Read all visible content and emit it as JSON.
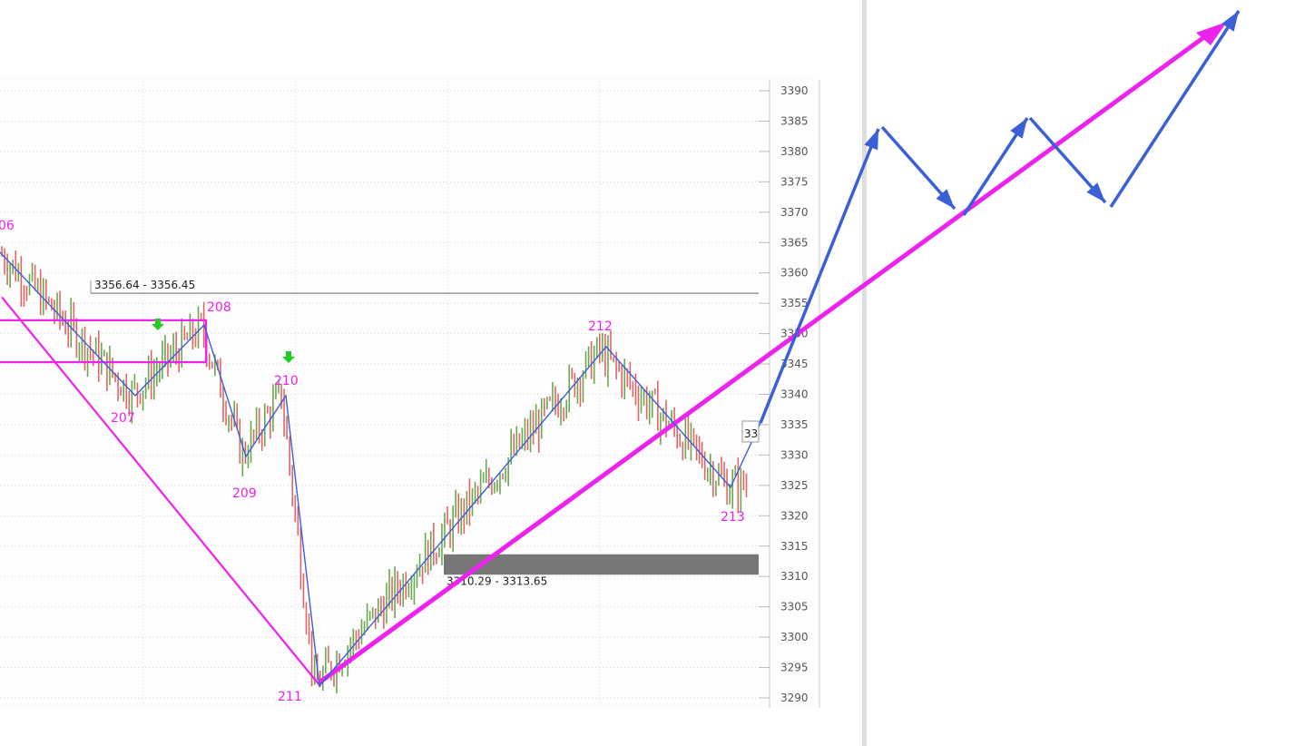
{
  "chart_data": {
    "type": "candlestick",
    "y_axis": {
      "ylim": [
        3288,
        3392
      ],
      "ticks": [
        3390,
        3385,
        3380,
        3375,
        3370,
        3365,
        3360,
        3355,
        3350,
        3345,
        3340,
        3335,
        3330,
        3325,
        3320,
        3315,
        3310,
        3305,
        3300,
        3295,
        3290
      ],
      "tick_labels": [
        "3390",
        "3385",
        "3380",
        "3375",
        "3370",
        "3365",
        "3360",
        "3355",
        "3350",
        "3345",
        "3340",
        "3335",
        "3330",
        "3325",
        "3320",
        "3315",
        "3310",
        "3305",
        "3300",
        "3295",
        "3290"
      ],
      "partial_tick_labels": {
        "3355": "3355",
        "3350": "3350"
      },
      "side": "right"
    },
    "x_range": [
      0,
      230
    ],
    "grid": true,
    "wave_points": [
      {
        "label": "06",
        "x": 0,
        "price": 3363
      },
      {
        "label": "207",
        "x": 47,
        "price": 3340
      },
      {
        "label": "208",
        "x": 72,
        "price": 3351
      },
      {
        "label": "209",
        "x": 87,
        "price": 3330
      },
      {
        "label": "210",
        "x": 101,
        "price": 3340
      },
      {
        "label": "211",
        "x": 113,
        "price": 3292
      },
      {
        "label": "212",
        "x": 216,
        "price": 3347
      },
      {
        "label": "213",
        "x": 262,
        "price": 3325
      }
    ],
    "wave_labels": [
      "06",
      "207",
      "208",
      "209",
      "210",
      "211",
      "212",
      "213"
    ],
    "zones": [
      {
        "label": "3356.64 - 3356.45",
        "low": 3356.45,
        "high": 3356.64,
        "kind": "line"
      },
      {
        "label": "3310.29 - 3313.65",
        "low": 3310.29,
        "high": 3313.65,
        "kind": "band"
      }
    ],
    "overlay_box": {
      "low": 3345.3,
      "high": 3352.2,
      "color": "#ee22ee"
    },
    "down_arrows": [
      {
        "x": 56,
        "price": 3352
      },
      {
        "x": 102,
        "price": 3346
      }
    ],
    "cut_label": "33",
    "trend_line": {
      "from": {
        "x": 0,
        "price": 3356
      },
      "to": {
        "x": 113,
        "price": 3292
      },
      "color": "#ee22ee"
    },
    "rising_trend": {
      "from": {
        "x": 113,
        "price": 3292
      },
      "color": "#ee22ee"
    },
    "projection_color": "#3a5fd6",
    "candle_colors": {
      "up": "#6aa84f",
      "down": "#e06666"
    },
    "grid_color": "#d8d8d8",
    "bg_color": "#fdfdfd"
  }
}
